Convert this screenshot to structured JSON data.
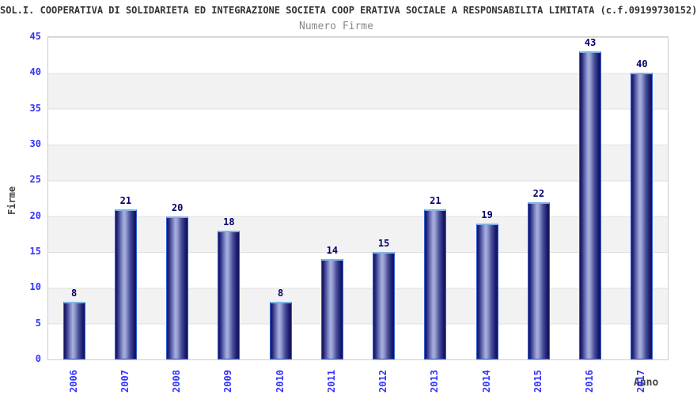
{
  "chart_data": {
    "type": "bar",
    "title": "SOL.I. COOPERATIVA DI SOLIDARIETA ED INTEGRAZIONE SOCIETA COOP ERATIVA SOCIALE A RESPONSABILITA LIMITATA (c.f.09199730152)",
    "subtitle": "Numero Firme",
    "xlabel": "Anno",
    "ylabel": "Firme",
    "categories": [
      "2006",
      "2007",
      "2008",
      "2009",
      "2010",
      "2011",
      "2012",
      "2013",
      "2014",
      "2015",
      "2016",
      "2017"
    ],
    "values": [
      8,
      21,
      20,
      18,
      8,
      14,
      15,
      21,
      19,
      22,
      43,
      40
    ],
    "ylim": [
      0,
      45
    ],
    "yticks": [
      0,
      5,
      10,
      15,
      20,
      25,
      30,
      35,
      40,
      45
    ],
    "grid": "horizontal-bands-every-5",
    "legend": "none",
    "bar_value_labels_shown": true,
    "colors": {
      "bar_dark": "#15155e",
      "bar_highlight": "#aab1de",
      "bar_outline": "#2f5fd0",
      "bar_top_cap": "#7fb3e8",
      "tick_label": "#3333ff",
      "value_label": "#00006a",
      "title": "#333333",
      "subtitle": "#888888",
      "axis_label": "#444444",
      "band_gray": "#f2f2f2",
      "plot_border": "#cccccc"
    }
  }
}
